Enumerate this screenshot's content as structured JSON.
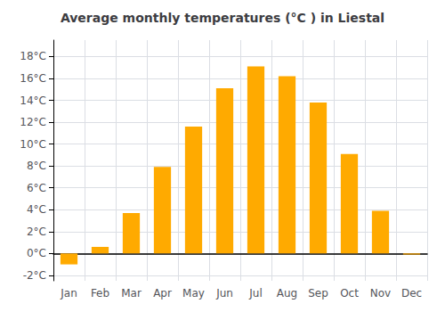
{
  "chart_data": {
    "type": "bar",
    "title": "Average monthly temperatures (°C ) in Liestal",
    "categories": [
      "Jan",
      "Feb",
      "Mar",
      "Apr",
      "May",
      "Jun",
      "Jul",
      "Aug",
      "Sep",
      "Oct",
      "Nov",
      "Dec"
    ],
    "values": [
      -1.0,
      0.6,
      3.7,
      7.9,
      11.6,
      15.1,
      17.1,
      16.2,
      13.8,
      9.1,
      3.9,
      -0.1
    ],
    "color": "#FFAA00",
    "ylim": [
      -2.5,
      19.5
    ],
    "yticks": [
      {
        "value": -2,
        "label": "-2°C"
      },
      {
        "value": 0,
        "label": "0°C"
      },
      {
        "value": 2,
        "label": "2°C"
      },
      {
        "value": 4,
        "label": "4°C"
      },
      {
        "value": 6,
        "label": "6°C"
      },
      {
        "value": 8,
        "label": "8°C"
      },
      {
        "value": 10,
        "label": "10°C"
      },
      {
        "value": 12,
        "label": "12°C"
      },
      {
        "value": 14,
        "label": "14°C"
      },
      {
        "value": 16,
        "label": "16°C"
      },
      {
        "value": 18,
        "label": "18°C"
      }
    ],
    "grid": true
  }
}
